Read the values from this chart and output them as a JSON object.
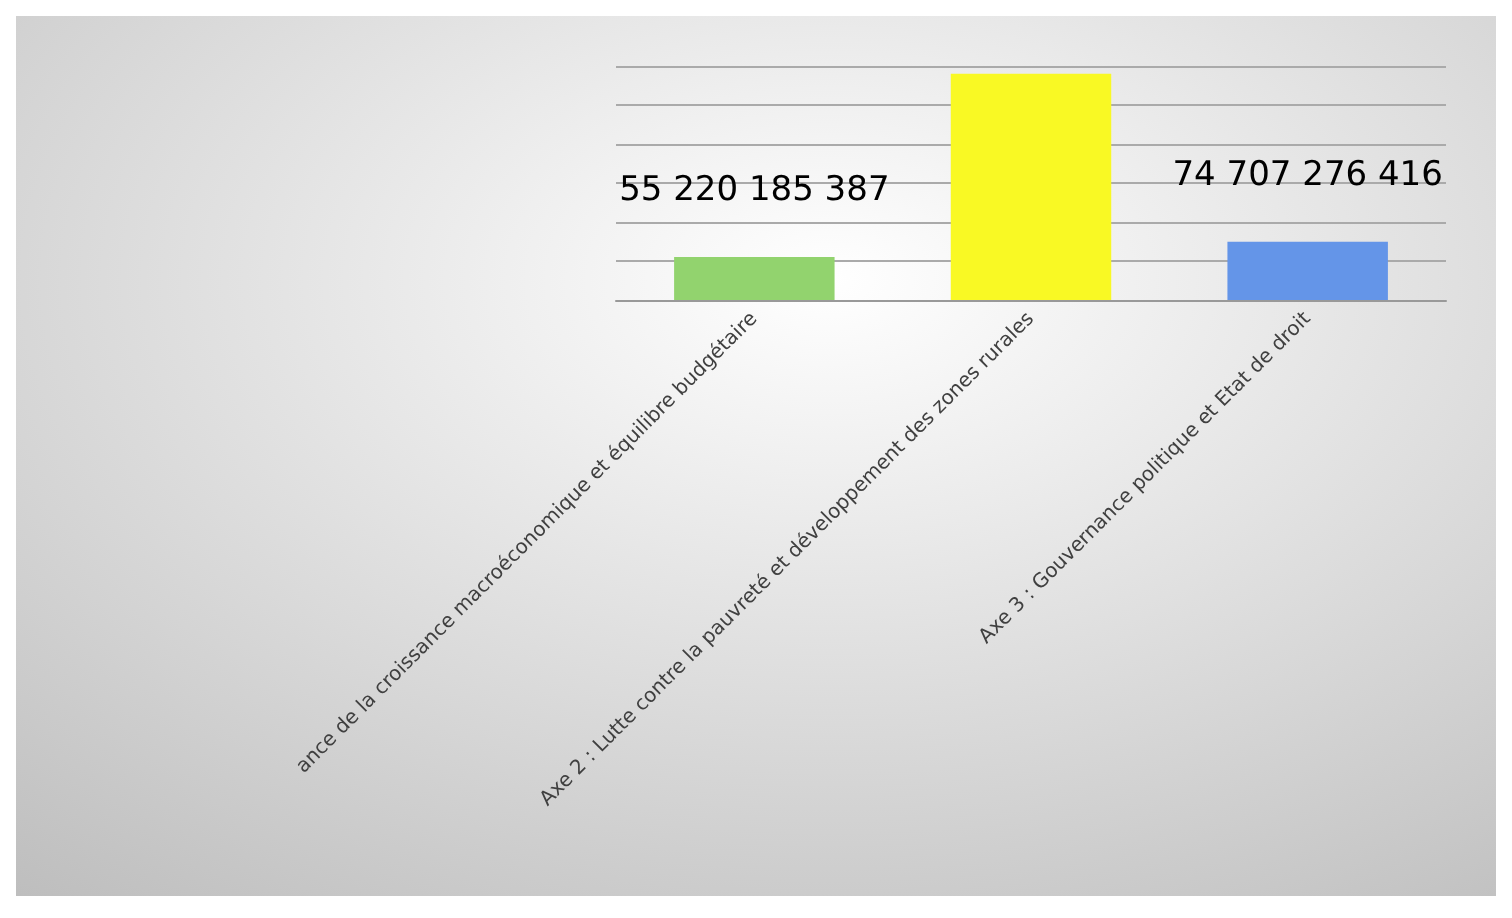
{
  "chart_data": {
    "type": "bar",
    "categories": [
      "ance de la croissance macroéconomique et équilibre budgétaire",
      "Axe 2 : Lutte contre la pauvreté et développement des zones rurales",
      "Axe 3 : Gouvernance politique et Etat de droit"
    ],
    "values": [
      55220185387,
      290000000000,
      74707276416
    ],
    "colors": [
      "#92d36e",
      "#f9f924",
      "#6495e8"
    ],
    "value_labels": [
      "55 220 185 387",
      null,
      "74 707 276 416"
    ],
    "grid": "y",
    "tick_labels": "x"
  }
}
